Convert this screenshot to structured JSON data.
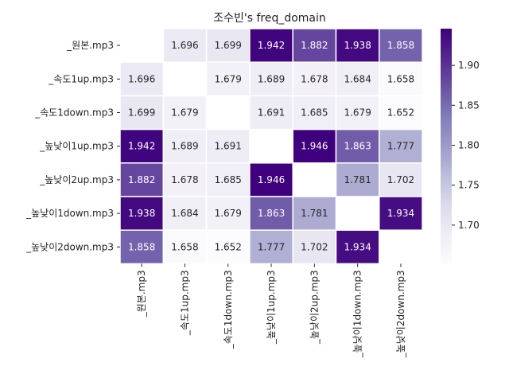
{
  "chart_data": {
    "type": "heatmap",
    "title": "조수빈's freq_domain",
    "xlabel": "",
    "ylabel": "",
    "labels": [
      "_원본.mp3",
      "_속도1up.mp3",
      "_속도1down.mp3",
      "_높낮이1up.mp3",
      "_높낮이2up.mp3",
      "_높낮이1down.mp3",
      "_높낮이2down.mp3"
    ],
    "matrix": [
      [
        null,
        1.696,
        1.699,
        1.942,
        1.882,
        1.938,
        1.858
      ],
      [
        1.696,
        null,
        1.679,
        1.689,
        1.678,
        1.684,
        1.658
      ],
      [
        1.699,
        1.679,
        null,
        1.691,
        1.685,
        1.679,
        1.652
      ],
      [
        1.942,
        1.689,
        1.691,
        null,
        1.946,
        1.863,
        1.777
      ],
      [
        1.882,
        1.678,
        1.685,
        1.946,
        null,
        1.781,
        1.702
      ],
      [
        1.938,
        1.684,
        1.679,
        1.863,
        1.781,
        null,
        1.934
      ],
      [
        1.858,
        1.658,
        1.652,
        1.777,
        1.702,
        1.934,
        null
      ]
    ],
    "colorbar": {
      "min": 1.652,
      "max": 1.946,
      "ticks": [
        1.7,
        1.75,
        1.8,
        1.85,
        1.9
      ],
      "colormap": [
        "#fcfbfd",
        "#efedf5",
        "#dadaeb",
        "#bcbddc",
        "#9e9ac8",
        "#807dba",
        "#6a51a3",
        "#54278f",
        "#3f007d"
      ]
    },
    "cell_border_color": "#ffffff",
    "grid": false,
    "legend": "colorbar-right"
  }
}
